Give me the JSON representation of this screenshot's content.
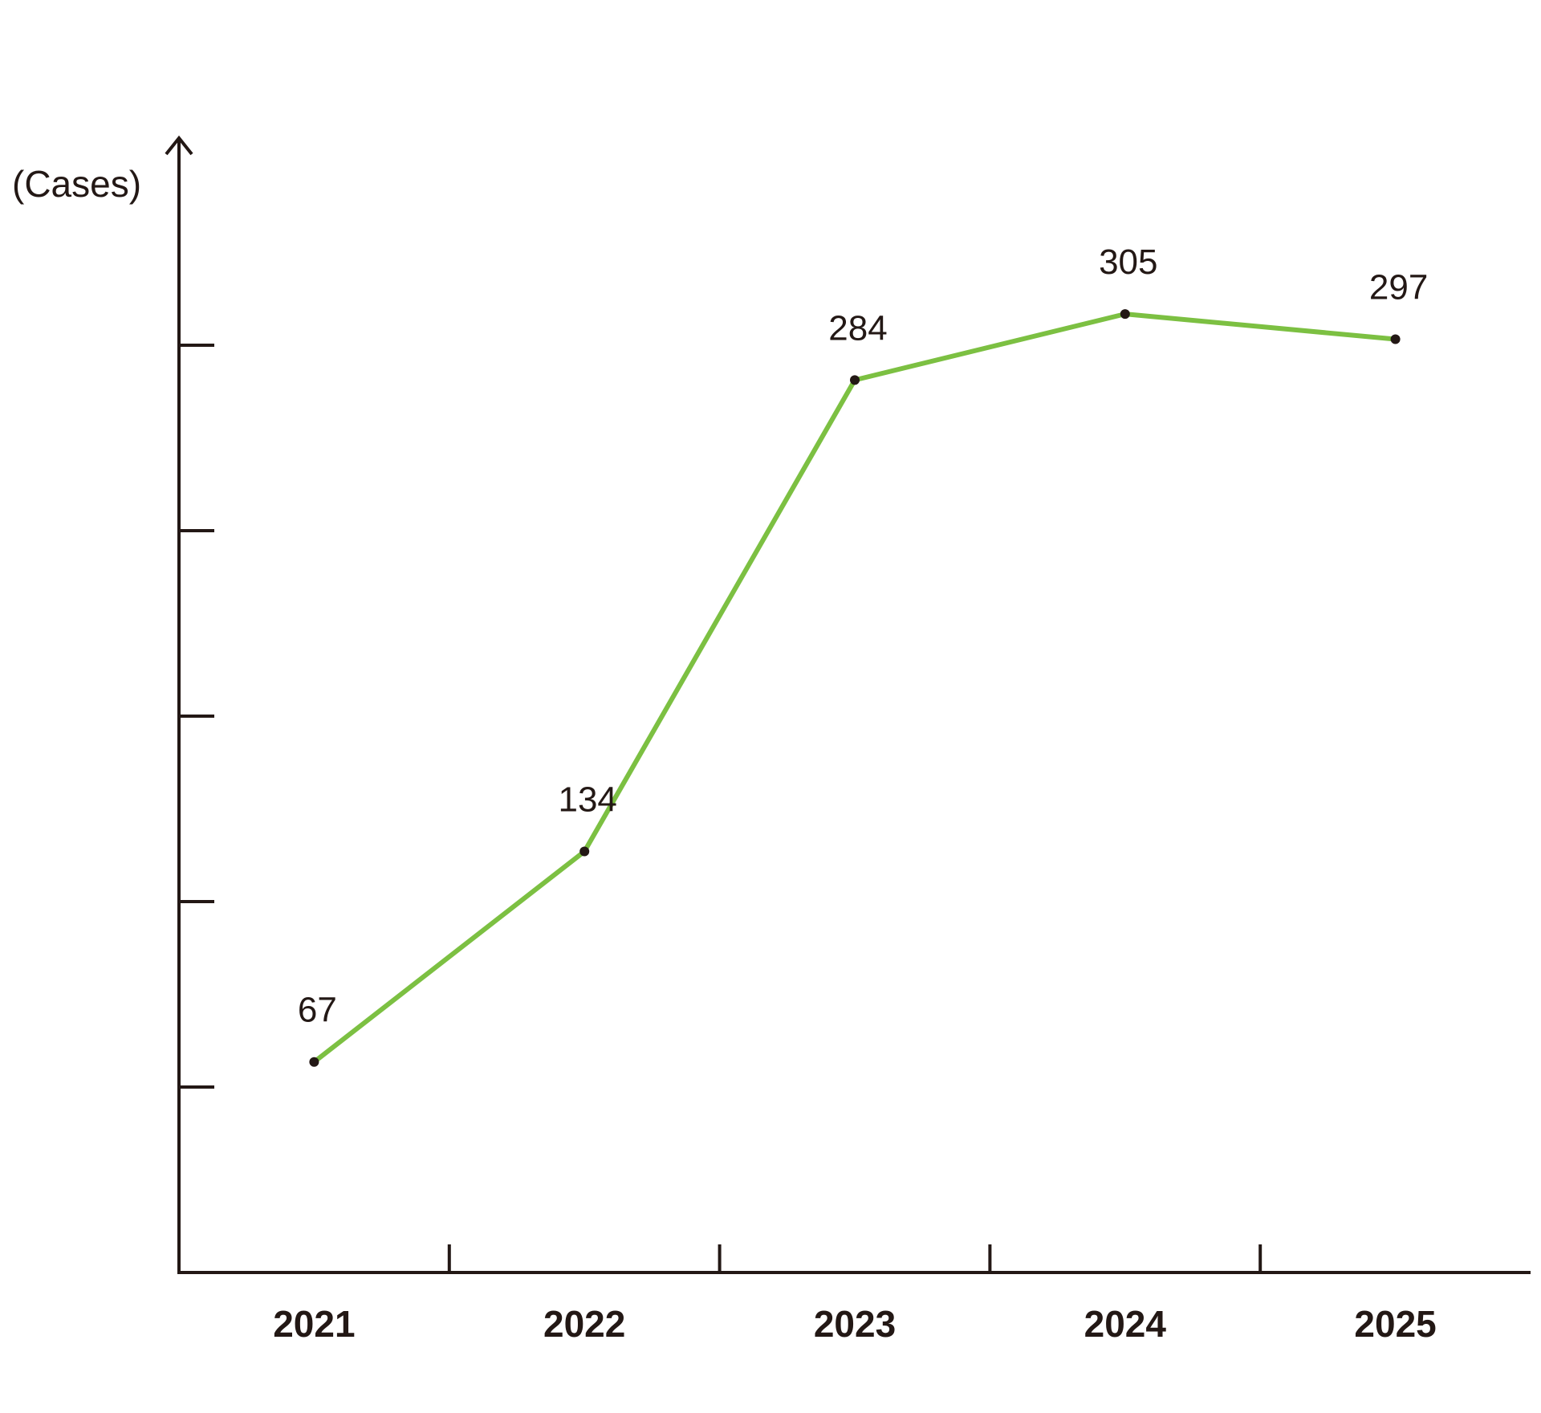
{
  "chart_data": {
    "type": "line",
    "title": "",
    "xlabel": "",
    "ylabel": "(Cases)",
    "categories": [
      "2021",
      "2022",
      "2023",
      "2024",
      "2025"
    ],
    "series": [
      {
        "values": [
          67,
          134,
          284,
          305,
          297
        ],
        "color": "#7cc042"
      }
    ],
    "ylim": [
      0,
      338
    ],
    "y_tick_count": 5,
    "y_tick_labels_shown": false,
    "data_labels_shown": true,
    "grid": false,
    "legend": "none",
    "axis_color": "#231815"
  }
}
